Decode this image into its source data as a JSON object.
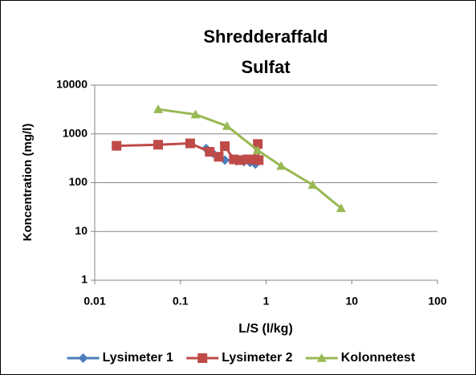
{
  "chart_data": {
    "type": "line",
    "title": [
      "Shredderaffald",
      "Sulfat"
    ],
    "xlabel": "L/S (l/kg)",
    "ylabel": "Koncentration (mg/l)",
    "xscale": "log",
    "yscale": "log",
    "xlim": [
      0.01,
      100
    ],
    "ylim": [
      1,
      10000
    ],
    "xticks": [
      0.01,
      0.1,
      1,
      10,
      100
    ],
    "yticks": [
      1,
      10,
      100,
      1000,
      10000
    ],
    "grid": "y",
    "legend": "bottom",
    "series": [
      {
        "name": "Lysimeter 1",
        "color": "#4a7ebb",
        "marker": "diamond",
        "x": [
          0.2,
          0.24,
          0.33,
          0.45,
          0.55,
          0.65,
          0.75
        ],
        "values": [
          500,
          400,
          290,
          280,
          270,
          260,
          240
        ]
      },
      {
        "name": "Lysimeter 2",
        "color": "#be4b48",
        "marker": "square",
        "x": [
          0.018,
          0.055,
          0.13,
          0.22,
          0.28,
          0.33,
          0.42,
          0.5,
          0.6,
          0.7,
          0.8,
          0.82
        ],
        "values": [
          570,
          600,
          640,
          430,
          340,
          560,
          300,
          290,
          300,
          300,
          620,
          290
        ]
      },
      {
        "name": "Kolonnetest",
        "color": "#98b954",
        "marker": "triangle",
        "x": [
          0.055,
          0.15,
          0.35,
          0.8,
          1.5,
          3.5,
          7.5
        ],
        "values": [
          3200,
          2500,
          1450,
          460,
          220,
          90,
          30
        ]
      }
    ]
  }
}
